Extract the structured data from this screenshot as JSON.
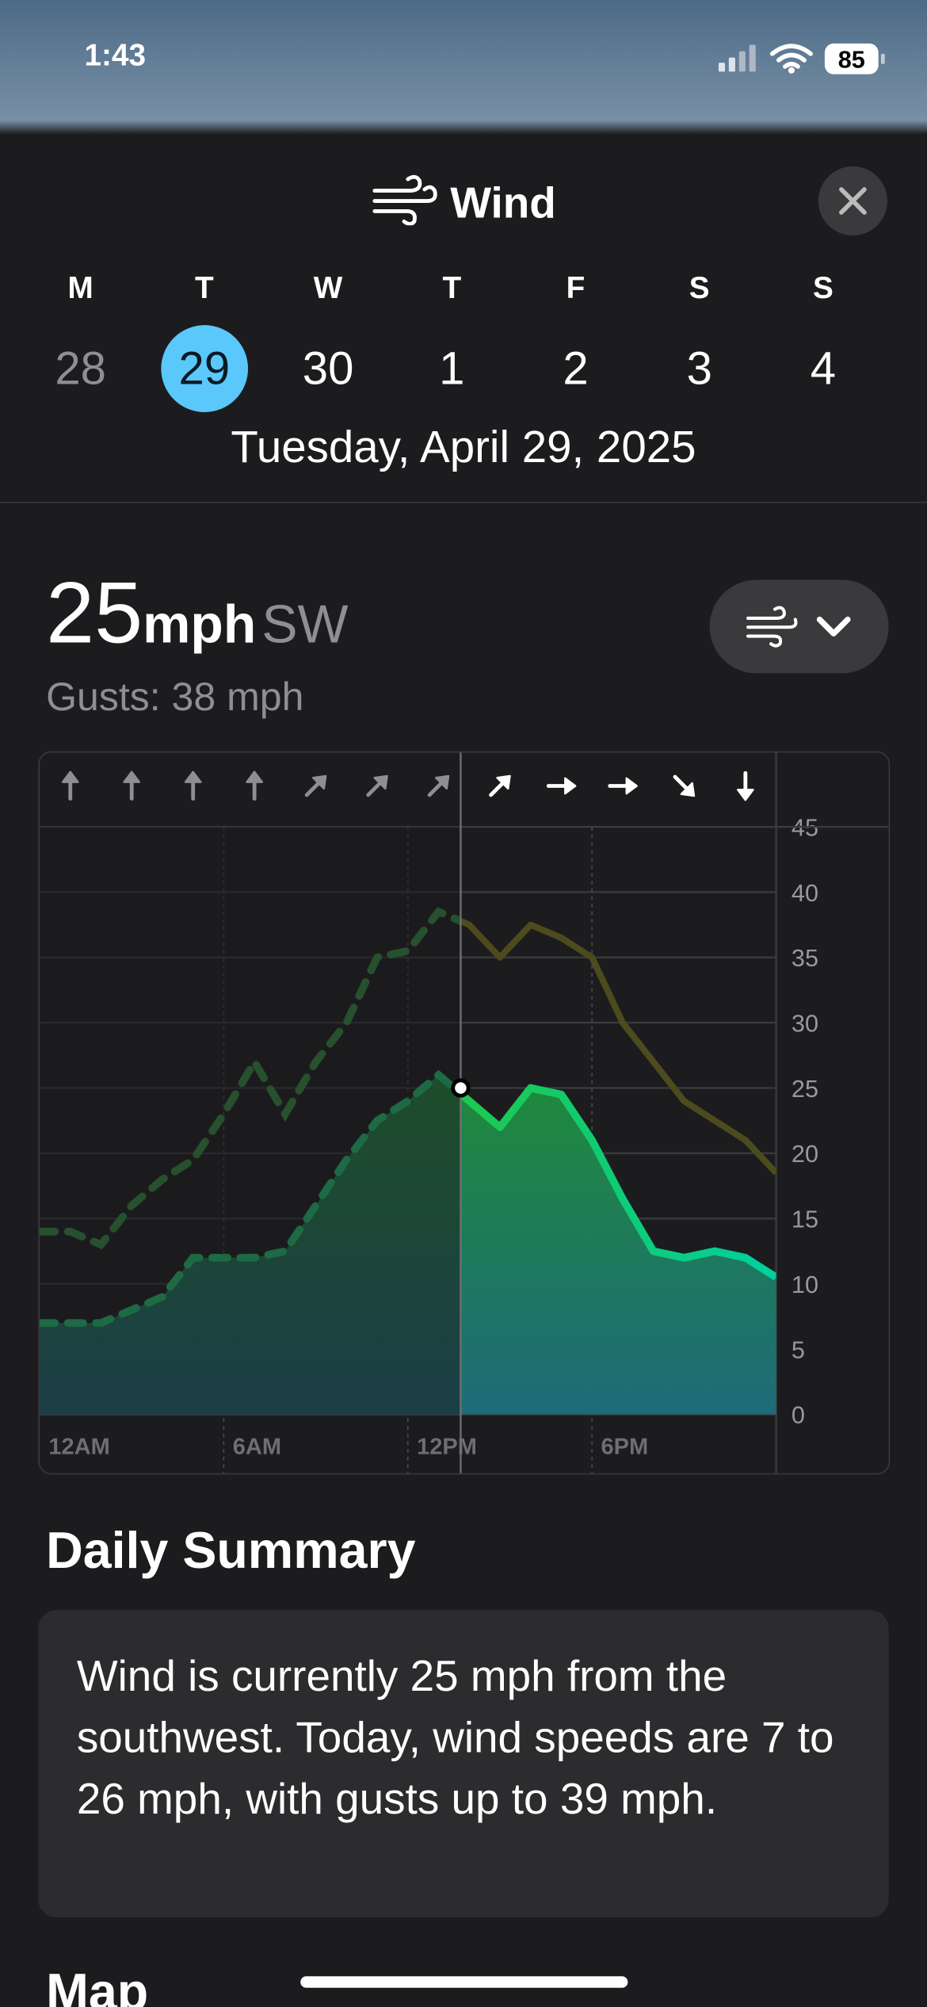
{
  "status_bar": {
    "time": "1:43",
    "battery": "85"
  },
  "header": {
    "title": "Wind"
  },
  "week": [
    {
      "day": "M",
      "date": 28
    },
    {
      "day": "T",
      "date": 29
    },
    {
      "day": "W",
      "date": 30
    },
    {
      "day": "T",
      "date": 1
    },
    {
      "day": "F",
      "date": 2
    },
    {
      "day": "S",
      "date": 3
    },
    {
      "day": "S",
      "date": 4
    }
  ],
  "selected_day": 1,
  "selected_date": "Tuesday, April 29, 2025",
  "current": {
    "speed": 25,
    "unit": "mph",
    "direction": "SW",
    "gusts": "Gusts: 38 mph"
  },
  "chart_data": {
    "type": "line",
    "x": [
      0,
      1,
      2,
      3,
      4,
      5,
      6,
      7,
      8,
      9,
      10,
      11,
      12,
      13,
      14,
      15,
      16,
      17,
      18,
      19,
      20,
      21,
      22,
      23,
      24
    ],
    "series": [
      {
        "color": "#1fc84a",
        "values": [
          7,
          7,
          7,
          8,
          9,
          12,
          12,
          12,
          12.5,
          16,
          19.5,
          22.5,
          24,
          26,
          24,
          22,
          25,
          24.5,
          21,
          16.5,
          12.5,
          12,
          12.5,
          12,
          10.5
        ]
      },
      {
        "color": "#4d4b1d",
        "values": [
          14,
          14,
          13,
          16,
          18,
          19.5,
          23,
          27,
          23,
          27,
          30,
          35,
          35.5,
          38.5,
          37.5,
          35,
          37.5,
          36.5,
          35,
          30,
          27,
          24,
          22.5,
          21,
          18.5
        ]
      }
    ],
    "directions": [
      0,
      0,
      0,
      0,
      45,
      45,
      45,
      45,
      90,
      90,
      135,
      180
    ],
    "now": 13.72,
    "xlim": [
      0,
      24
    ],
    "xticks": [
      {
        "value": 0,
        "label": "12AM"
      },
      {
        "value": 6,
        "label": "6AM"
      },
      {
        "value": 12,
        "label": "12PM"
      },
      {
        "value": 18,
        "label": "6PM"
      }
    ],
    "ylim": [
      0,
      45
    ],
    "yticks": [
      0,
      5,
      10,
      15,
      20,
      25,
      30,
      35,
      40,
      45
    ],
    "grid": true
  },
  "summary": {
    "title": "Daily Summary",
    "text": "Wind is currently 25 mph from the southwest. Today, wind speeds are 7 to 26 mph, with gusts up to 39 mph."
  },
  "next_section": "Map"
}
